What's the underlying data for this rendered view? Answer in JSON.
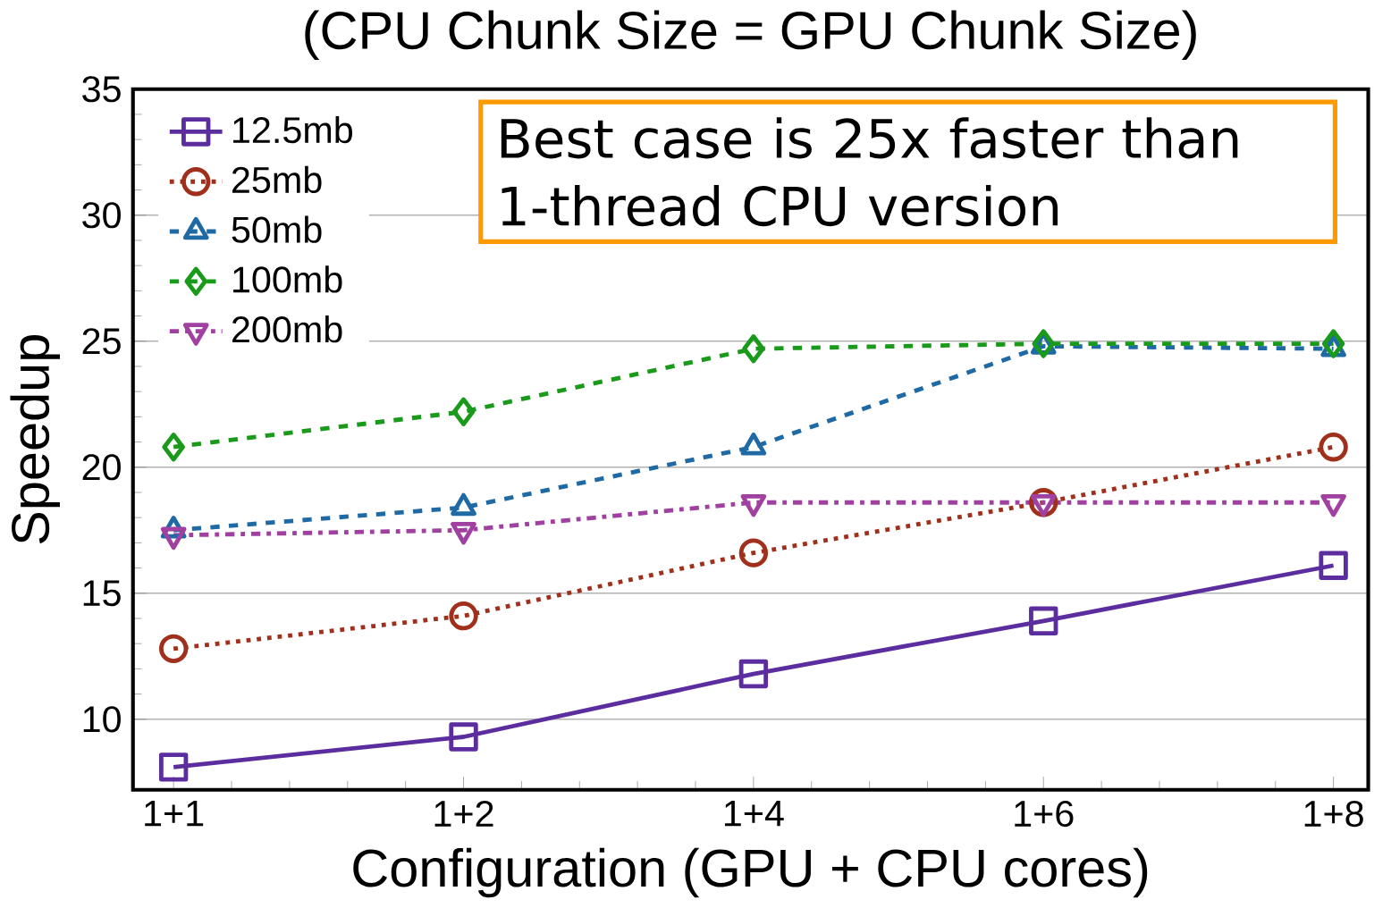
{
  "chart_data": {
    "type": "line",
    "title": "(CPU Chunk Size = GPU Chunk Size)",
    "xlabel": "Configuration (GPU + CPU cores)",
    "ylabel": "Speedup",
    "categories": [
      "1+1",
      "1+2",
      "1+4",
      "1+6",
      "1+8"
    ],
    "series": [
      {
        "name": "12.5mb",
        "color": "#5b2d9e",
        "marker": "square",
        "line_style": "solid",
        "values": [
          8.1,
          9.3,
          11.8,
          13.9,
          16.1
        ]
      },
      {
        "name": "25mb",
        "color": "#a0301c",
        "marker": "circle",
        "line_style": "dotted",
        "values": [
          12.8,
          14.1,
          16.6,
          18.6,
          20.8
        ]
      },
      {
        "name": "50mb",
        "color": "#1f6aa5",
        "marker": "triangle",
        "line_style": "dashed",
        "values": [
          17.5,
          18.4,
          20.8,
          24.8,
          24.7
        ]
      },
      {
        "name": "100mb",
        "color": "#1a9a1a",
        "marker": "diamond",
        "line_style": "dashed",
        "values": [
          20.8,
          22.2,
          24.7,
          24.9,
          24.9
        ]
      },
      {
        "name": "200mb",
        "color": "#a040a0",
        "marker": "triangle down",
        "line_style": "dashdot",
        "values": [
          17.3,
          17.5,
          18.6,
          18.6,
          18.6
        ]
      }
    ],
    "ylim": [
      7.2,
      35
    ],
    "yticks": [
      10,
      15,
      20,
      25,
      30,
      35
    ],
    "grid": "y",
    "legend": "top left",
    "annotations": [
      "Best case is 25x faster than 1-thread CPU version"
    ]
  }
}
